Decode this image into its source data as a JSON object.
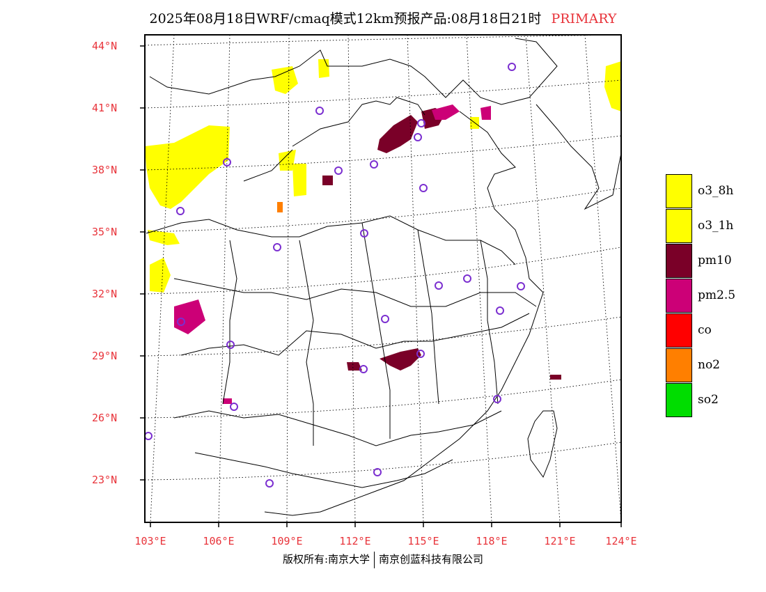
{
  "title": {
    "main": "2025年08月18日WRF/cmaq模式12km预报产品:08月18日21时",
    "tag": "PRIMARY"
  },
  "axes": {
    "lat_labels": [
      "44°N",
      "41°N",
      "38°N",
      "35°N",
      "32°N",
      "29°N",
      "26°N",
      "23°N"
    ],
    "lon_labels": [
      "103°E",
      "106°E",
      "109°E",
      "112°E",
      "115°E",
      "118°E",
      "121°E",
      "124°E"
    ]
  },
  "legend": [
    {
      "label": "o3_8h",
      "color": "#ffff00"
    },
    {
      "label": "o3_1h",
      "color": "#ffff00"
    },
    {
      "label": "pm10",
      "color": "#7a0028"
    },
    {
      "label": "pm2.5",
      "color": "#cc0077"
    },
    {
      "label": "co",
      "color": "#ff0000"
    },
    {
      "label": "no2",
      "color": "#ff7f00"
    },
    {
      "label": "so2",
      "color": "#00dd00"
    }
  ],
  "footer": {
    "left": "版权所有:南京大学",
    "right": "南京创蓝科技有限公司"
  }
}
